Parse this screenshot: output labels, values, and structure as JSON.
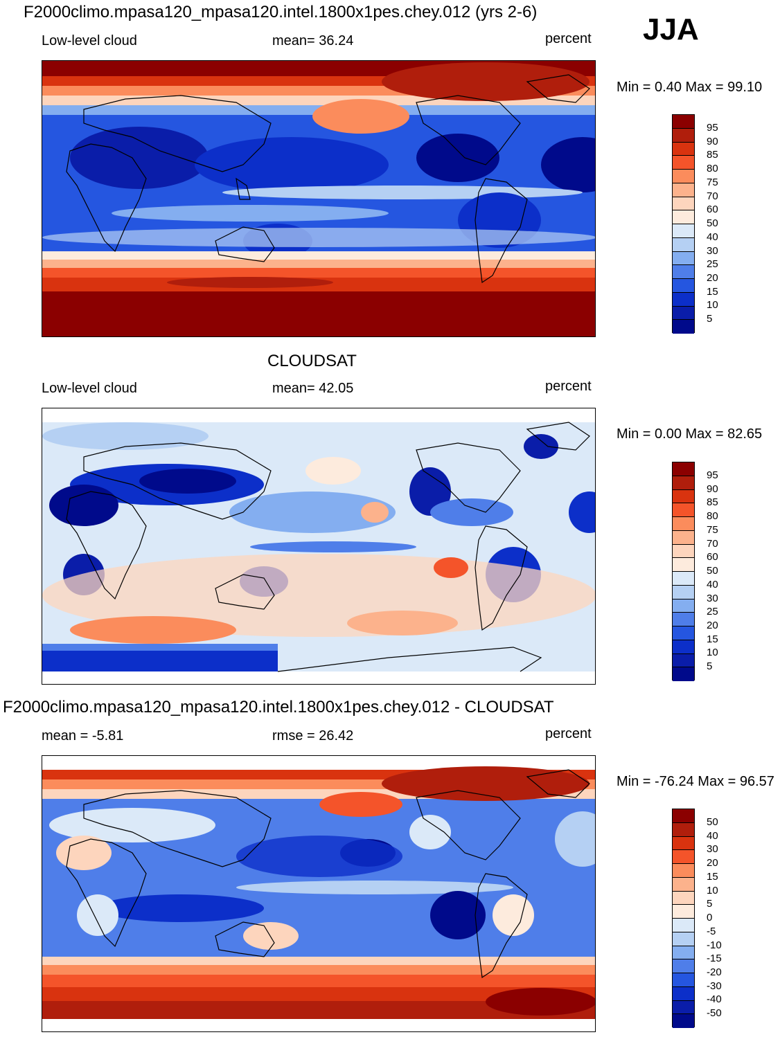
{
  "header": {
    "title": "F2000climo.mpasa120_mpasa120.intel.1800x1pes.chey.012 (yrs 2-6)",
    "season": "JJA"
  },
  "panels": [
    {
      "id": "model",
      "left_label": "Low-level cloud",
      "center_label": "mean=  36.24",
      "right_label": "percent",
      "minmax": "Min =   0.40 Max =  99.10",
      "colorbar_ticks": [
        "95",
        "90",
        "85",
        "80",
        "75",
        "70",
        "60",
        "50",
        "40",
        "30",
        "25",
        "20",
        "15",
        "10",
        "5"
      ]
    },
    {
      "id": "obs",
      "title": "CLOUDSAT",
      "left_label": "Low-level cloud",
      "center_label": "mean=  42.05",
      "right_label": "percent",
      "minmax": "Min =   0.00 Max =  82.65",
      "colorbar_ticks": [
        "95",
        "90",
        "85",
        "80",
        "75",
        "70",
        "60",
        "50",
        "40",
        "30",
        "25",
        "20",
        "15",
        "10",
        "5"
      ]
    },
    {
      "id": "diff",
      "title": "F2000climo.mpasa120_mpasa120.intel.1800x1pes.chey.012 - CLOUDSAT",
      "left_label": "mean =  -5.81",
      "center_label": "rmse =  26.42",
      "right_label": "percent",
      "minmax": "Min = -76.24 Max =  96.57",
      "colorbar_ticks": [
        "50",
        "40",
        "30",
        "20",
        "15",
        "10",
        "5",
        "0",
        "-5",
        "-10",
        "-15",
        "-20",
        "-30",
        "-40",
        "-50"
      ]
    }
  ],
  "colormap": [
    "#8b0000",
    "#b01e0c",
    "#d9330f",
    "#f4542a",
    "#fb8c5c",
    "#fcb28c",
    "#fdd5bd",
    "#fdebdd",
    "#dbe9f8",
    "#b5d0f3",
    "#84aef0",
    "#4f7ee9",
    "#2556e0",
    "#0c2fc9",
    "#0a1da9",
    "#000a8b"
  ],
  "chart_data": {
    "type": "map",
    "projection": "cylindrical equidistant",
    "variable": "Low-level cloud",
    "season": "JJA",
    "units": "percent",
    "model_mean": 36.24,
    "model_min": 0.4,
    "model_max": 99.1,
    "obs_mean": 42.05,
    "obs_min": 0.0,
    "obs_max": 82.65,
    "diff_mean": -5.81,
    "diff_rmse": 26.42,
    "diff_min": -76.24,
    "diff_max": 96.57,
    "levels_abs": [
      5,
      10,
      15,
      20,
      25,
      30,
      40,
      50,
      60,
      70,
      75,
      80,
      85,
      90,
      95
    ],
    "levels_diff": [
      -50,
      -40,
      -30,
      -20,
      -15,
      -10,
      -5,
      0,
      5,
      10,
      15,
      20,
      30,
      40,
      50
    ]
  }
}
